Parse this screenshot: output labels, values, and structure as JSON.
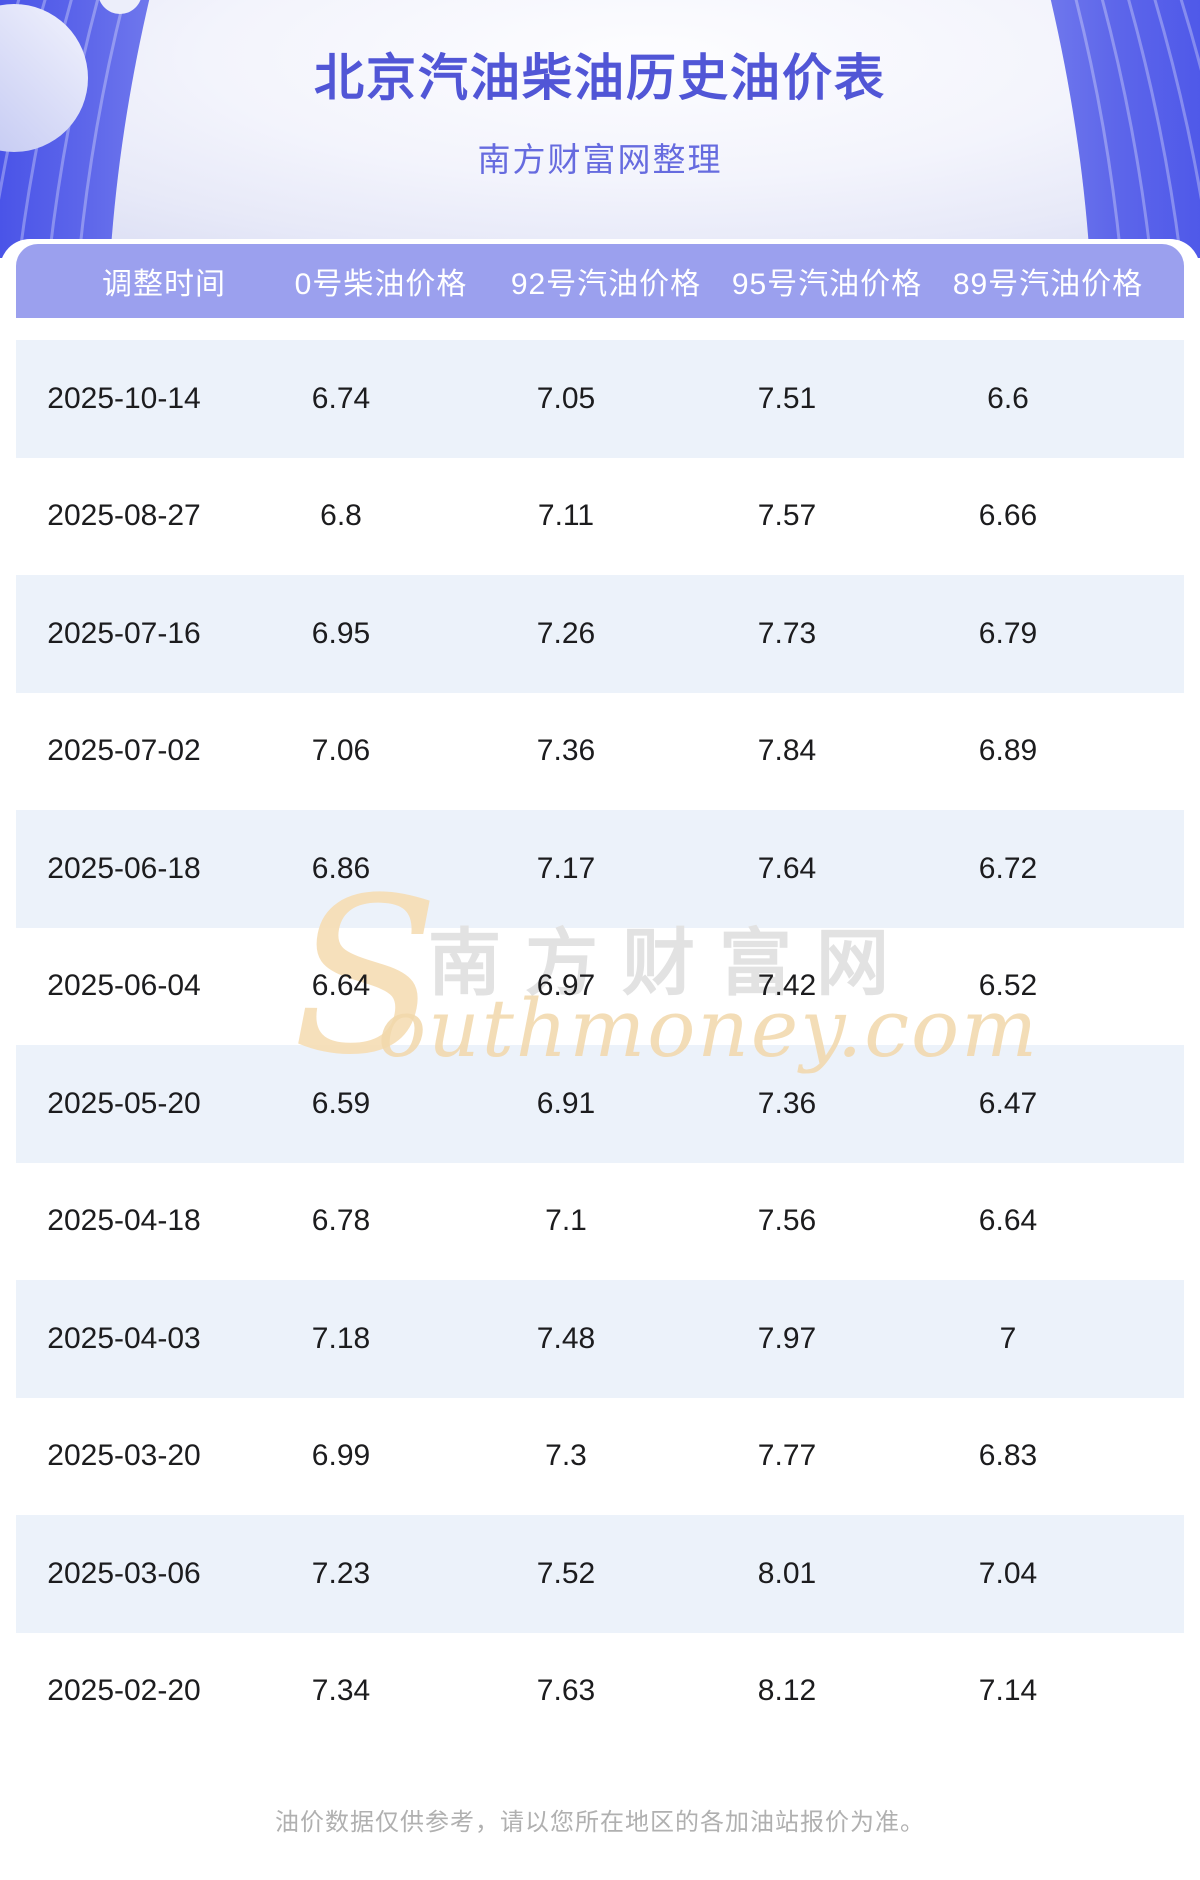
{
  "header": {
    "title": "北京汽油柴油历史油价表",
    "subtitle": "南方财富网整理"
  },
  "table": {
    "columns": [
      "调整时间",
      "0号柴油价格",
      "92号汽油价格",
      "95号汽油价格",
      "89号汽油价格"
    ],
    "rows": [
      [
        "2025-10-14",
        "6.74",
        "7.05",
        "7.51",
        "6.6"
      ],
      [
        "2025-08-27",
        "6.8",
        "7.11",
        "7.57",
        "6.66"
      ],
      [
        "2025-07-16",
        "6.95",
        "7.26",
        "7.73",
        "6.79"
      ],
      [
        "2025-07-02",
        "7.06",
        "7.36",
        "7.84",
        "6.89"
      ],
      [
        "2025-06-18",
        "6.86",
        "7.17",
        "7.64",
        "6.72"
      ],
      [
        "2025-06-04",
        "6.64",
        "6.97",
        "7.42",
        "6.52"
      ],
      [
        "2025-05-20",
        "6.59",
        "6.91",
        "7.36",
        "6.47"
      ],
      [
        "2025-04-18",
        "6.78",
        "7.1",
        "7.56",
        "6.64"
      ],
      [
        "2025-04-03",
        "7.18",
        "7.48",
        "7.97",
        "7"
      ],
      [
        "2025-03-20",
        "6.99",
        "7.3",
        "7.77",
        "6.83"
      ],
      [
        "2025-03-06",
        "7.23",
        "7.52",
        "8.01",
        "7.04"
      ],
      [
        "2025-02-20",
        "7.34",
        "7.63",
        "8.12",
        "7.14"
      ]
    ]
  },
  "watermark": {
    "initial": "S",
    "site_name_cn": "南方财富网",
    "domain_script": "outhmoney.com"
  },
  "footer": {
    "disclaimer": "油价数据仅供参考，请以您所在地区的各加油站报价为准。"
  },
  "colors": {
    "hero_purple": "#5d66ea",
    "hero_stripe": "rgba(255,255,255,0.3)",
    "header_band": "#9ba0ee",
    "card_lip": "#8488dd",
    "row_alt": "#ecf2fa",
    "title_text": "#5156d6",
    "subtitle_text": "#666bdf",
    "cell_text": "#1c1c1e",
    "watermark_gray": "#e2e2e2",
    "watermark_tan": "#f2d8ab",
    "footer_gray": "#b0b0b0"
  }
}
